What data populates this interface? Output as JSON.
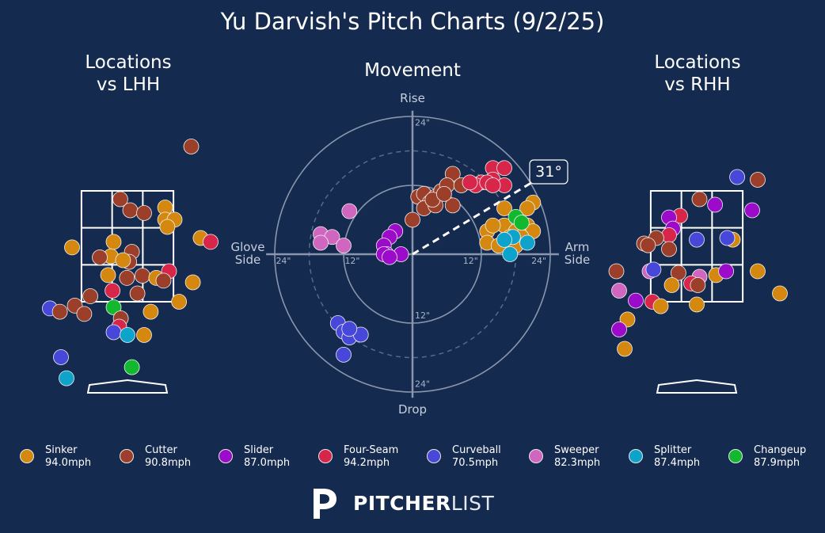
{
  "title": "Yu Darvish's Pitch Charts (9/2/25)",
  "panels": {
    "left_title": "Locations\nvs LHH",
    "middle_title": "Movement",
    "right_title": "Locations\nvs RHH"
  },
  "movement_labels": {
    "top": "Rise",
    "bottom": "Drop",
    "left": "Glove\nSide",
    "right": "Arm\nSide",
    "tick_12": "12\"",
    "tick_24": "24\"",
    "arm_angle": "31°"
  },
  "brand": {
    "bold": "PITCHER",
    "light": "LIST",
    "logo": "pitcherlist-logo-icon"
  },
  "colors": {
    "background": "#142a4e",
    "Sinker": "#d4880f",
    "Cutter": "#9c3f2a",
    "Slider": "#9b0bc9",
    "Four-Seam": "#d8264a",
    "Curveball": "#4747d9",
    "Sweeper": "#d066c0",
    "Splitter": "#0ea3cb",
    "Changeup": "#12b82e"
  },
  "legend": [
    {
      "name": "Sinker",
      "speed": "94.0mph"
    },
    {
      "name": "Cutter",
      "speed": "90.8mph"
    },
    {
      "name": "Slider",
      "speed": "87.0mph"
    },
    {
      "name": "Four-Seam",
      "speed": "94.2mph"
    },
    {
      "name": "Curveball",
      "speed": "70.5mph"
    },
    {
      "name": "Sweeper",
      "speed": "82.3mph"
    },
    {
      "name": "Splitter",
      "speed": "87.4mph"
    },
    {
      "name": "Changeup",
      "speed": "87.9mph"
    }
  ],
  "chart_data": [
    {
      "type": "scatter",
      "title": "Locations\nvs LHH",
      "xlabel": "",
      "ylabel": "",
      "units": "feet (catcher view, plate_x / plate_z)",
      "xlim": [
        -2.5,
        2.5
      ],
      "ylim": [
        -0.6,
        5.0
      ],
      "strike_zone": {
        "x": [
          -0.83,
          0.83
        ],
        "z": [
          1.5,
          3.5
        ]
      },
      "points": [
        {
          "pitch": "Cutter",
          "x": 1.15,
          "z": 4.3
        },
        {
          "pitch": "Cutter",
          "x": -0.13,
          "z": 3.35
        },
        {
          "pitch": "Cutter",
          "x": 0.05,
          "z": 3.15
        },
        {
          "pitch": "Cutter",
          "x": 0.3,
          "z": 3.1
        },
        {
          "pitch": "Sinker",
          "x": 0.68,
          "z": 3.2
        },
        {
          "pitch": "Sinker",
          "x": 0.68,
          "z": 2.98
        },
        {
          "pitch": "Sinker",
          "x": 0.85,
          "z": 2.98
        },
        {
          "pitch": "Sinker",
          "x": 0.72,
          "z": 2.85
        },
        {
          "pitch": "Sinker",
          "x": 1.32,
          "z": 2.65
        },
        {
          "pitch": "Four-Seam",
          "x": 1.5,
          "z": 2.58
        },
        {
          "pitch": "Sinker",
          "x": -1.0,
          "z": 2.48
        },
        {
          "pitch": "Sinker",
          "x": -0.25,
          "z": 2.58
        },
        {
          "pitch": "Cutter",
          "x": 0.08,
          "z": 2.4
        },
        {
          "pitch": "Sinker",
          "x": -0.3,
          "z": 2.32
        },
        {
          "pitch": "Cutter",
          "x": -0.5,
          "z": 2.3
        },
        {
          "pitch": "Cutter",
          "x": 0.03,
          "z": 2.22
        },
        {
          "pitch": "Sinker",
          "x": -0.08,
          "z": 2.25
        },
        {
          "pitch": "Four-Seam",
          "x": 0.75,
          "z": 2.05
        },
        {
          "pitch": "Sinker",
          "x": -0.35,
          "z": 1.98
        },
        {
          "pitch": "Cutter",
          "x": -0.01,
          "z": 1.93
        },
        {
          "pitch": "Cutter",
          "x": 0.27,
          "z": 1.97
        },
        {
          "pitch": "Sinker",
          "x": 0.52,
          "z": 1.93
        },
        {
          "pitch": "Cutter",
          "x": 0.65,
          "z": 1.88
        },
        {
          "pitch": "Sinker",
          "x": 1.18,
          "z": 1.85
        },
        {
          "pitch": "Four-Seam",
          "x": -0.27,
          "z": 1.7
        },
        {
          "pitch": "Cutter",
          "x": 0.18,
          "z": 1.65
        },
        {
          "pitch": "Cutter",
          "x": -0.67,
          "z": 1.6
        },
        {
          "pitch": "Sinker",
          "x": 0.93,
          "z": 1.5
        },
        {
          "pitch": "Cutter",
          "x": -0.95,
          "z": 1.43
        },
        {
          "pitch": "Curveball",
          "x": -1.4,
          "z": 1.38
        },
        {
          "pitch": "Cutter",
          "x": -1.22,
          "z": 1.32
        },
        {
          "pitch": "Cutter",
          "x": -0.78,
          "z": 1.28
        },
        {
          "pitch": "Changeup",
          "x": -0.25,
          "z": 1.4
        },
        {
          "pitch": "Sinker",
          "x": 0.42,
          "z": 1.32
        },
        {
          "pitch": "Cutter",
          "x": -0.12,
          "z": 1.2
        },
        {
          "pitch": "Four-Seam",
          "x": -0.15,
          "z": 1.05
        },
        {
          "pitch": "Curveball",
          "x": -0.25,
          "z": 0.95
        },
        {
          "pitch": "Splitter",
          "x": 0.0,
          "z": 0.9
        },
        {
          "pitch": "Sinker",
          "x": 0.3,
          "z": 0.9
        },
        {
          "pitch": "Curveball",
          "x": -1.2,
          "z": 0.5
        },
        {
          "pitch": "Changeup",
          "x": 0.08,
          "z": 0.32
        },
        {
          "pitch": "Splitter",
          "x": -1.1,
          "z": 0.12
        }
      ]
    },
    {
      "type": "scatter",
      "title": "Movement",
      "xlabel": "",
      "ylabel": "",
      "units": "inches (horizontal break, induced vertical break)",
      "xlim": [
        -24,
        24
      ],
      "ylim": [
        -24,
        24
      ],
      "rings": [
        12,
        24
      ],
      "dashed_rings": [
        18
      ],
      "arm_angle_deg": 31,
      "points": [
        {
          "pitch": "Cutter",
          "x": 7,
          "z": 14
        },
        {
          "pitch": "Cutter",
          "x": 1,
          "z": 10
        },
        {
          "pitch": "Cutter",
          "x": 2,
          "z": 10.5
        },
        {
          "pitch": "Cutter",
          "x": 3,
          "z": 9
        },
        {
          "pitch": "Cutter",
          "x": 4,
          "z": 10
        },
        {
          "pitch": "Cutter",
          "x": 5,
          "z": 11
        },
        {
          "pitch": "Cutter",
          "x": 6,
          "z": 12
        },
        {
          "pitch": "Cutter",
          "x": 2,
          "z": 8
        },
        {
          "pitch": "Cutter",
          "x": 4,
          "z": 8.5
        },
        {
          "pitch": "Cutter",
          "x": 3.5,
          "z": 9.5
        },
        {
          "pitch": "Cutter",
          "x": 7,
          "z": 8.5
        },
        {
          "pitch": "Cutter",
          "x": 8.5,
          "z": 12
        },
        {
          "pitch": "Cutter",
          "x": 5.5,
          "z": 10.5
        },
        {
          "pitch": "Cutter",
          "x": 0,
          "z": 6
        },
        {
          "pitch": "Four-Seam",
          "x": 14,
          "z": 15
        },
        {
          "pitch": "Four-Seam",
          "x": 16,
          "z": 15
        },
        {
          "pitch": "Four-Seam",
          "x": 12,
          "z": 12.5
        },
        {
          "pitch": "Four-Seam",
          "x": 14,
          "z": 13
        },
        {
          "pitch": "Four-Seam",
          "x": 16,
          "z": 12
        },
        {
          "pitch": "Four-Seam",
          "x": 11,
          "z": 12
        },
        {
          "pitch": "Four-Seam",
          "x": 13,
          "z": 12.5
        },
        {
          "pitch": "Four-Seam",
          "x": 14,
          "z": 12
        },
        {
          "pitch": "Four-Seam",
          "x": 10,
          "z": 12.5
        },
        {
          "pitch": "Sinker",
          "x": 21,
          "z": 9
        },
        {
          "pitch": "Sinker",
          "x": 20,
          "z": 8
        },
        {
          "pitch": "Sinker",
          "x": 16,
          "z": 8
        },
        {
          "pitch": "Sinker",
          "x": 16,
          "z": 5
        },
        {
          "pitch": "Sinker",
          "x": 18,
          "z": 4
        },
        {
          "pitch": "Sinker",
          "x": 20,
          "z": 5
        },
        {
          "pitch": "Sinker",
          "x": 21,
          "z": 4
        },
        {
          "pitch": "Sinker",
          "x": 13,
          "z": 4
        },
        {
          "pitch": "Sinker",
          "x": 14,
          "z": 5
        },
        {
          "pitch": "Sinker",
          "x": 17,
          "z": 3
        },
        {
          "pitch": "Sinker",
          "x": 13,
          "z": 2
        },
        {
          "pitch": "Sinker",
          "x": 15,
          "z": 1.5
        },
        {
          "pitch": "Sinker",
          "x": 19,
          "z": 3
        },
        {
          "pitch": "Sinker",
          "x": 18,
          "z": 1.5
        },
        {
          "pitch": "Changeup",
          "x": 18,
          "z": 6.5
        },
        {
          "pitch": "Changeup",
          "x": 19,
          "z": 5.5
        },
        {
          "pitch": "Splitter",
          "x": 17.5,
          "z": 3
        },
        {
          "pitch": "Splitter",
          "x": 16,
          "z": 2.5
        },
        {
          "pitch": "Splitter",
          "x": 20,
          "z": 2
        },
        {
          "pitch": "Splitter",
          "x": 17,
          "z": 0
        },
        {
          "pitch": "Slider",
          "x": -3,
          "z": 4
        },
        {
          "pitch": "Slider",
          "x": -4,
          "z": 3
        },
        {
          "pitch": "Slider",
          "x": -5,
          "z": 1.5
        },
        {
          "pitch": "Slider",
          "x": -4.5,
          "z": 0
        },
        {
          "pitch": "Slider",
          "x": -2,
          "z": 0
        },
        {
          "pitch": "Slider",
          "x": -5,
          "z": 0
        },
        {
          "pitch": "Slider",
          "x": -4,
          "z": -0.5
        },
        {
          "pitch": "Sweeper",
          "x": -11,
          "z": 7.5
        },
        {
          "pitch": "Sweeper",
          "x": -16,
          "z": 3.5
        },
        {
          "pitch": "Sweeper",
          "x": -14,
          "z": 3
        },
        {
          "pitch": "Sweeper",
          "x": -16,
          "z": 2
        },
        {
          "pitch": "Sweeper",
          "x": -12,
          "z": 1.5
        },
        {
          "pitch": "Curveball",
          "x": -13,
          "z": -12
        },
        {
          "pitch": "Curveball",
          "x": -12,
          "z": -13.5
        },
        {
          "pitch": "Curveball",
          "x": -11,
          "z": -14.5
        },
        {
          "pitch": "Curveball",
          "x": -9,
          "z": -14
        },
        {
          "pitch": "Curveball",
          "x": -11,
          "z": -13
        },
        {
          "pitch": "Curveball",
          "x": -12,
          "z": -17.5
        }
      ]
    },
    {
      "type": "scatter",
      "title": "Locations\nvs RHH",
      "xlabel": "",
      "ylabel": "",
      "units": "feet (catcher view, plate_x / plate_z)",
      "xlim": [
        -2.5,
        2.5
      ],
      "ylim": [
        -0.6,
        5.0
      ],
      "strike_zone": {
        "x": [
          -0.83,
          0.83
        ],
        "z": [
          1.5,
          3.5
        ]
      },
      "points": [
        {
          "pitch": "Curveball",
          "x": 0.73,
          "z": 3.75
        },
        {
          "pitch": "Cutter",
          "x": 1.1,
          "z": 3.7
        },
        {
          "pitch": "Cutter",
          "x": 0.05,
          "z": 3.35
        },
        {
          "pitch": "Slider",
          "x": 0.33,
          "z": 3.25
        },
        {
          "pitch": "Slider",
          "x": 1.0,
          "z": 3.15
        },
        {
          "pitch": "Four-Seam",
          "x": -0.3,
          "z": 3.05
        },
        {
          "pitch": "Slider",
          "x": -0.5,
          "z": 3.02
        },
        {
          "pitch": "Slider",
          "x": -0.43,
          "z": 2.82
        },
        {
          "pitch": "Four-Seam",
          "x": -0.5,
          "z": 2.7
        },
        {
          "pitch": "Cutter",
          "x": -0.73,
          "z": 2.65
        },
        {
          "pitch": "Cutter",
          "x": -0.95,
          "z": 2.55
        },
        {
          "pitch": "Cutter",
          "x": -0.88,
          "z": 2.52
        },
        {
          "pitch": "Curveball",
          "x": 0.0,
          "z": 2.62
        },
        {
          "pitch": "Sinker",
          "x": 0.65,
          "z": 2.62
        },
        {
          "pitch": "Curveball",
          "x": 0.55,
          "z": 2.65
        },
        {
          "pitch": "Cutter",
          "x": -0.5,
          "z": 2.45
        },
        {
          "pitch": "Cutter",
          "x": -1.45,
          "z": 2.05
        },
        {
          "pitch": "Sweeper",
          "x": -0.85,
          "z": 2.05
        },
        {
          "pitch": "Curveball",
          "x": -0.78,
          "z": 2.08
        },
        {
          "pitch": "Cutter",
          "x": -0.33,
          "z": 2.02
        },
        {
          "pitch": "Sweeper",
          "x": 0.05,
          "z": 1.95
        },
        {
          "pitch": "Sinker",
          "x": 0.35,
          "z": 1.98
        },
        {
          "pitch": "Slider",
          "x": 0.53,
          "z": 2.05
        },
        {
          "pitch": "Sinker",
          "x": 1.1,
          "z": 2.05
        },
        {
          "pitch": "Four-Seam",
          "x": -0.1,
          "z": 1.83
        },
        {
          "pitch": "Cutter",
          "x": 0.02,
          "z": 1.8
        },
        {
          "pitch": "Sinker",
          "x": -0.45,
          "z": 1.8
        },
        {
          "pitch": "Sweeper",
          "x": -1.4,
          "z": 1.7
        },
        {
          "pitch": "Sinker",
          "x": 1.5,
          "z": 1.65
        },
        {
          "pitch": "Slider",
          "x": -1.1,
          "z": 1.52
        },
        {
          "pitch": "Four-Seam",
          "x": -0.8,
          "z": 1.5
        },
        {
          "pitch": "Sinker",
          "x": -0.65,
          "z": 1.42
        },
        {
          "pitch": "Sinker",
          "x": 0.0,
          "z": 1.45
        },
        {
          "pitch": "Sinker",
          "x": -1.25,
          "z": 1.18
        },
        {
          "pitch": "Slider",
          "x": -1.4,
          "z": 1.0
        },
        {
          "pitch": "Sinker",
          "x": -1.3,
          "z": 0.65
        }
      ]
    }
  ]
}
